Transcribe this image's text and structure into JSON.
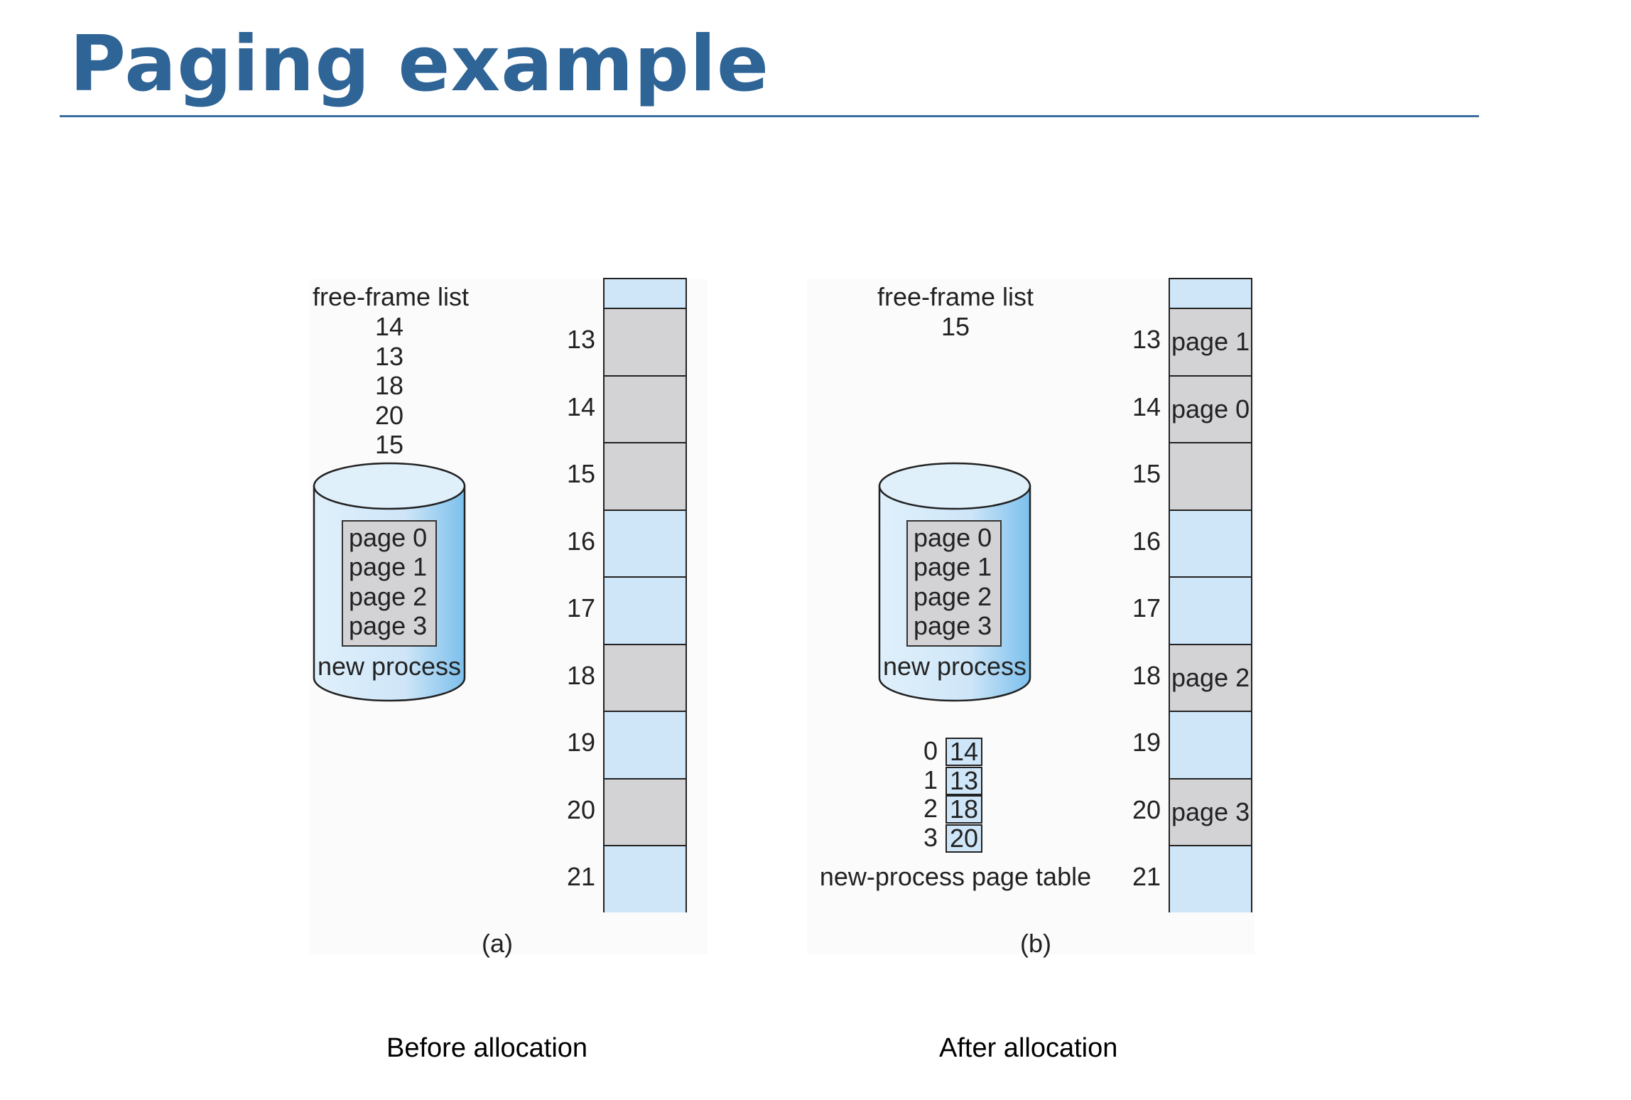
{
  "title": "Paging example",
  "panel_a": {
    "free_frame_heading": "free-frame list",
    "free_frames": [
      "14",
      "13",
      "18",
      "20",
      "15"
    ],
    "disk_pages": [
      "page 0",
      "page 1",
      "page 2",
      "page 3"
    ],
    "disk_label": "new process",
    "frames": [
      {
        "num": "13",
        "used": true,
        "label": ""
      },
      {
        "num": "14",
        "used": true,
        "label": ""
      },
      {
        "num": "15",
        "used": true,
        "label": ""
      },
      {
        "num": "16",
        "used": false,
        "label": ""
      },
      {
        "num": "17",
        "used": false,
        "label": ""
      },
      {
        "num": "18",
        "used": true,
        "label": ""
      },
      {
        "num": "19",
        "used": false,
        "label": ""
      },
      {
        "num": "20",
        "used": true,
        "label": ""
      },
      {
        "num": "21",
        "used": false,
        "label": ""
      }
    ],
    "tag": "(a)",
    "caption": "Before allocation"
  },
  "panel_b": {
    "free_frame_heading": "free-frame list",
    "free_frames": [
      "15"
    ],
    "disk_pages": [
      "page 0",
      "page 1",
      "page 2",
      "page 3"
    ],
    "disk_label": "new process",
    "page_table": {
      "rows": [
        {
          "index": "0",
          "frame": "14"
        },
        {
          "index": "1",
          "frame": "13"
        },
        {
          "index": "2",
          "frame": "18"
        },
        {
          "index": "3",
          "frame": "20"
        }
      ],
      "label": "new-process page table"
    },
    "frames": [
      {
        "num": "13",
        "used": true,
        "label": "page 1"
      },
      {
        "num": "14",
        "used": true,
        "label": "page 0"
      },
      {
        "num": "15",
        "used": true,
        "label": ""
      },
      {
        "num": "16",
        "used": false,
        "label": ""
      },
      {
        "num": "17",
        "used": false,
        "label": ""
      },
      {
        "num": "18",
        "used": true,
        "label": "page 2"
      },
      {
        "num": "19",
        "used": false,
        "label": ""
      },
      {
        "num": "20",
        "used": true,
        "label": "page 3"
      },
      {
        "num": "21",
        "used": false,
        "label": ""
      }
    ],
    "tag": "(b)",
    "caption": "After allocation"
  },
  "colors": {
    "title": "#2f6496",
    "free_frame": "#cfe6f8",
    "used_frame": "#d3d3d6",
    "disk_fill": "#cfe6f8"
  }
}
